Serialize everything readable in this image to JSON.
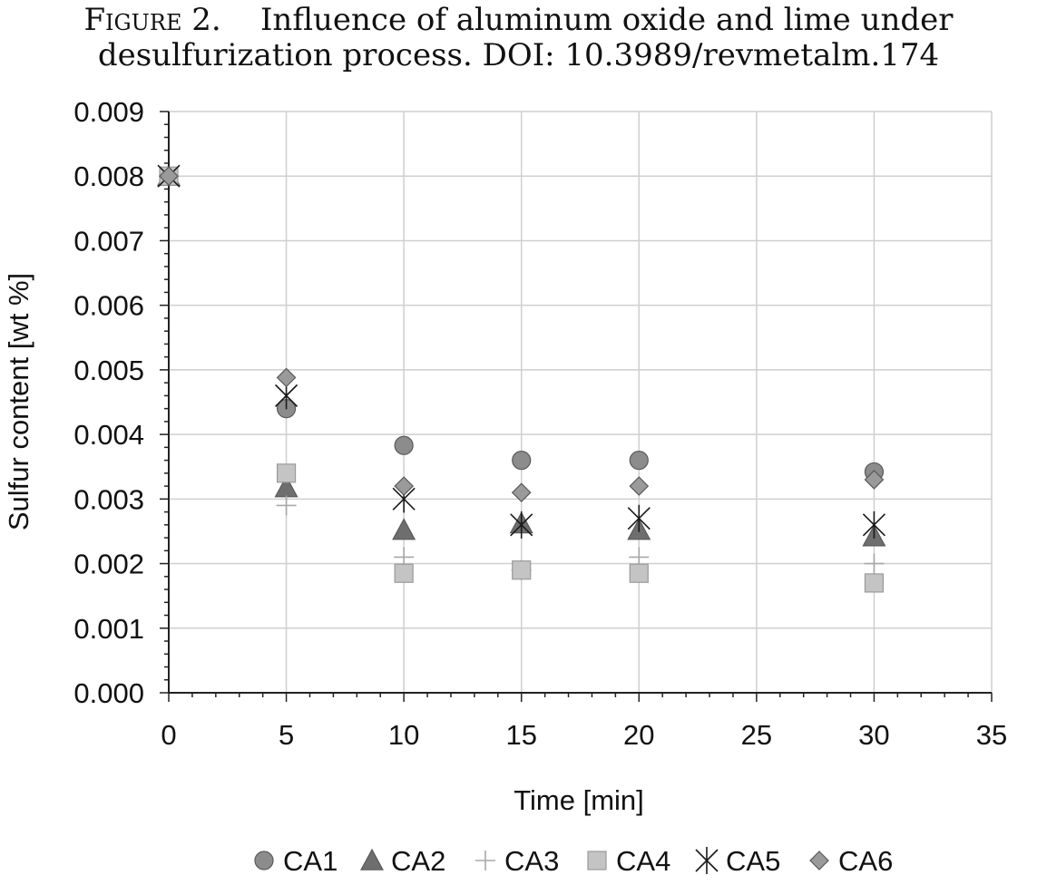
{
  "caption": {
    "figure_label": "Figure 2.",
    "text_line1": "Influence of aluminum oxide and lime under",
    "text_line2": "desulfurization process. DOI: 10.3989/revmetalm.174"
  },
  "chart_data": {
    "type": "scatter",
    "title": "",
    "xlabel": "Time [min]",
    "ylabel": "Sulfur content [wt %]",
    "xlim": [
      0,
      35
    ],
    "ylim": [
      0,
      0.009
    ],
    "x_ticks": [
      0,
      5,
      10,
      15,
      20,
      25,
      30,
      35
    ],
    "x_tick_labels": [
      "0",
      "5",
      "10",
      "15",
      "20",
      "25",
      "30",
      "35"
    ],
    "y_ticks": [
      0,
      0.001,
      0.002,
      0.003,
      0.004,
      0.005,
      0.006,
      0.007,
      0.008,
      0.009
    ],
    "y_tick_labels": [
      "0.000",
      "0.001",
      "0.002",
      "0.003",
      "0.004",
      "0.005",
      "0.006",
      "0.007",
      "0.008",
      "0.009"
    ],
    "grid": true,
    "legend_position": "bottom",
    "series": [
      {
        "name": "CA1",
        "marker": "circle",
        "color": "#8c8c8c",
        "x": [
          0,
          5,
          10,
          15,
          20,
          30
        ],
        "y": [
          0.008,
          0.0044,
          0.00383,
          0.0036,
          0.0036,
          0.00342
        ]
      },
      {
        "name": "CA2",
        "marker": "triangle",
        "color": "#6e6e6e",
        "x": [
          0,
          5,
          10,
          15,
          20,
          30
        ],
        "y": [
          0.008,
          0.00318,
          0.00252,
          0.00262,
          0.00252,
          0.00242
        ]
      },
      {
        "name": "CA3",
        "marker": "plus",
        "color": "#a8a8a8",
        "x": [
          0,
          5,
          10,
          15,
          20,
          30
        ],
        "y": [
          0.008,
          0.0029,
          0.0021,
          0.0019,
          0.0021,
          0.002
        ]
      },
      {
        "name": "CA4",
        "marker": "square",
        "color": "#c4c4c4",
        "x": [
          0,
          5,
          10,
          15,
          20,
          30
        ],
        "y": [
          0.008,
          0.0034,
          0.00185,
          0.0019,
          0.00185,
          0.0017
        ]
      },
      {
        "name": "CA5",
        "marker": "star",
        "color": "#1a1a1a",
        "x": [
          0,
          5,
          10,
          15,
          20,
          30
        ],
        "y": [
          0.008,
          0.0046,
          0.003,
          0.0026,
          0.0027,
          0.0026
        ]
      },
      {
        "name": "CA6",
        "marker": "diamond",
        "color": "#9a9a9a",
        "x": [
          0,
          5,
          10,
          15,
          20,
          30
        ],
        "y": [
          0.008,
          0.00488,
          0.0032,
          0.0031,
          0.0032,
          0.0033
        ]
      }
    ]
  }
}
